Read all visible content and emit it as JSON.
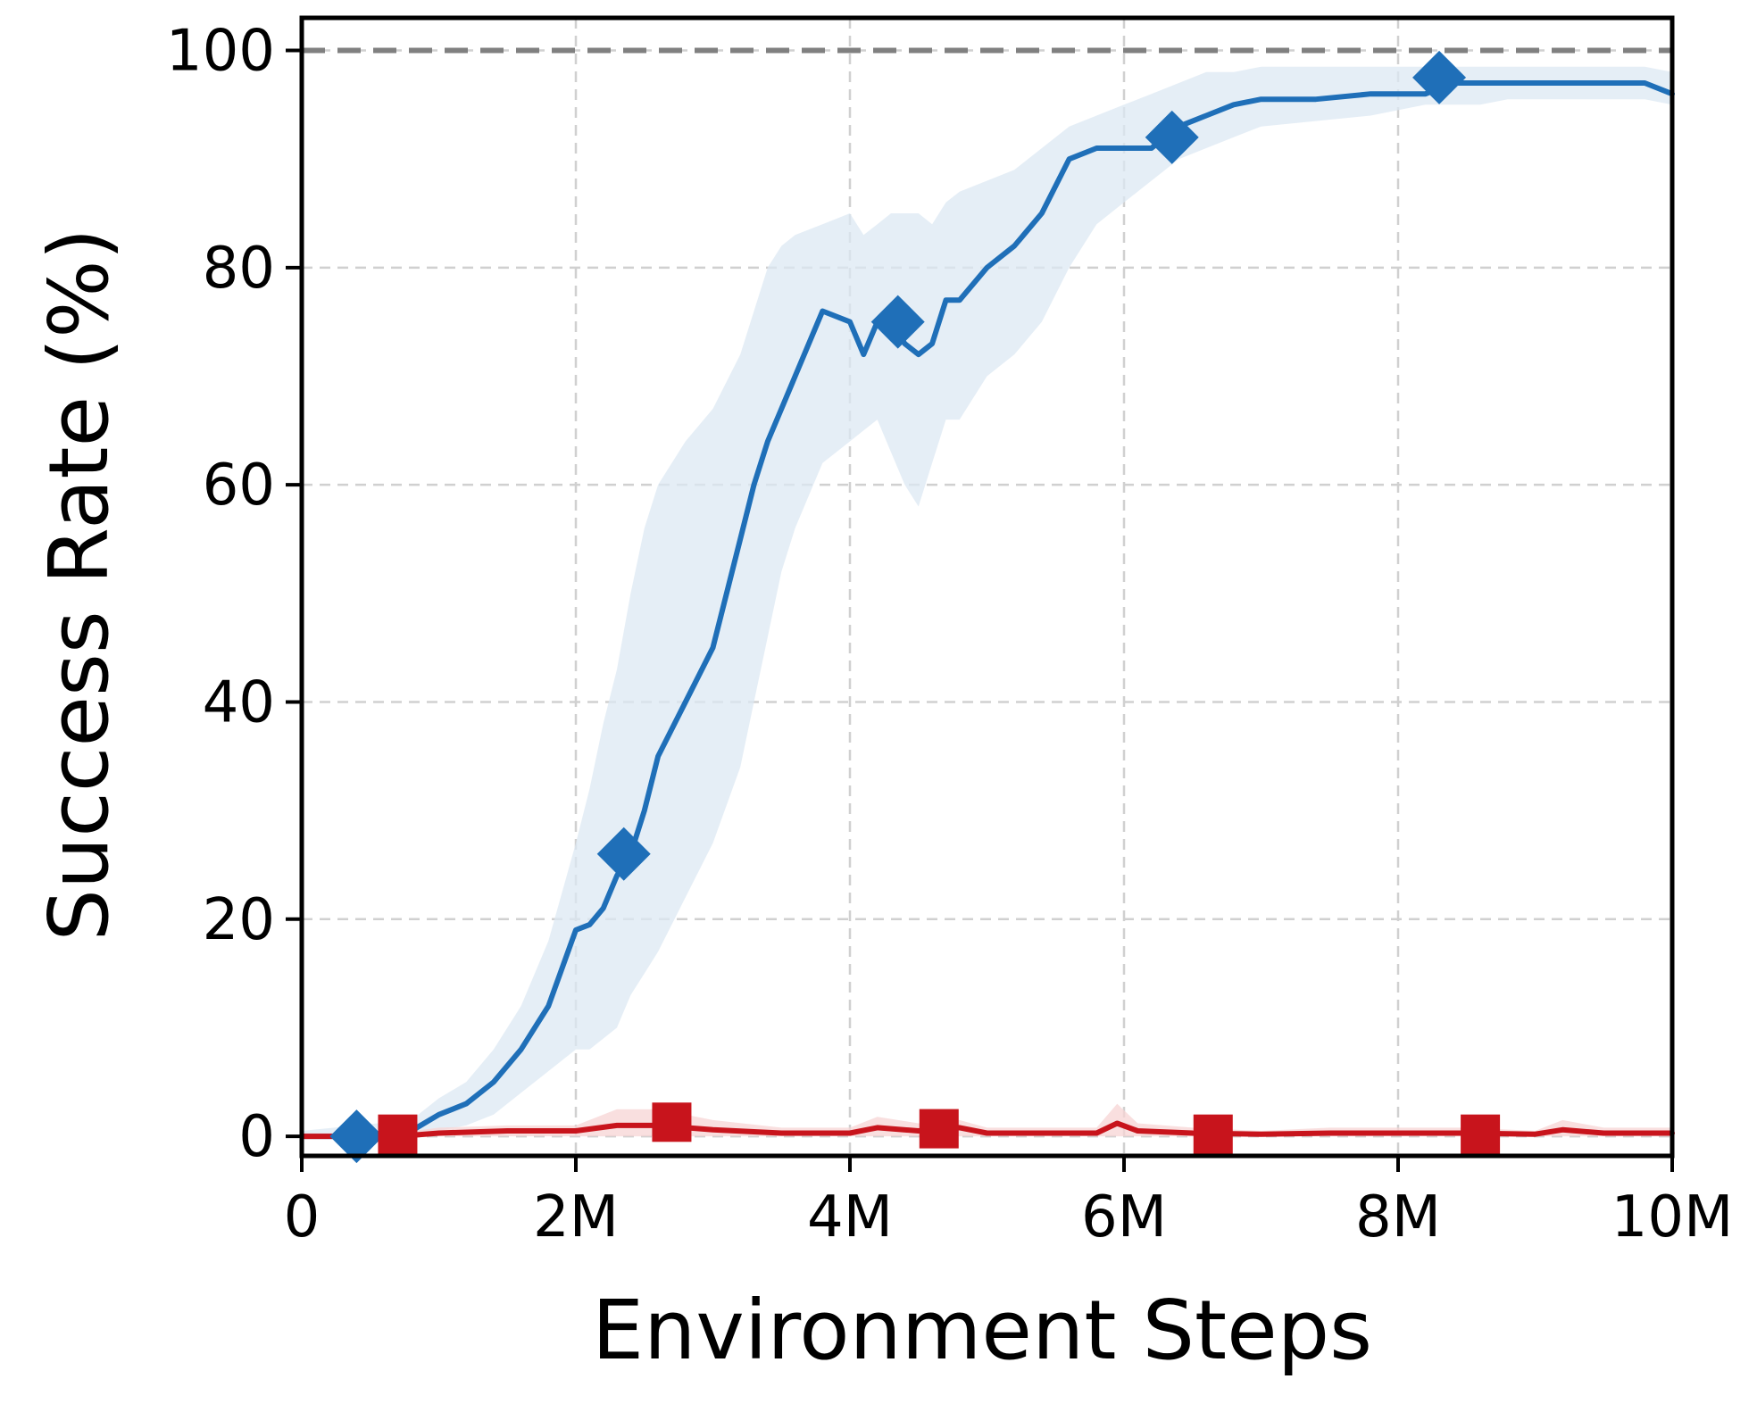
{
  "chart_data": {
    "type": "line",
    "xlabel": "Environment Steps",
    "ylabel": "Success Rate (%)",
    "xlim": [
      0,
      10
    ],
    "ylim": [
      -1.8,
      103
    ],
    "x_unit": "M steps",
    "x_ticks": [
      0,
      2,
      4,
      6,
      8,
      10
    ],
    "x_tick_labels": [
      "0",
      "2M",
      "4M",
      "6M",
      "8M",
      "10M"
    ],
    "y_ticks": [
      0,
      20,
      40,
      60,
      80,
      100
    ],
    "y_tick_labels": [
      "0",
      "20",
      "40",
      "60",
      "80",
      "100"
    ],
    "grid": true,
    "reference_line": {
      "y": 100,
      "color": "#808080",
      "style": "dashed"
    },
    "series": [
      {
        "color": "#1f6fb8",
        "band_color": "#dce8f3",
        "marker": "diamond",
        "x": [
          0,
          0.4,
          0.8,
          1.0,
          1.2,
          1.4,
          1.6,
          1.8,
          2.0,
          2.1,
          2.2,
          2.3,
          2.4,
          2.5,
          2.6,
          2.8,
          3.0,
          3.2,
          3.3,
          3.4,
          3.5,
          3.6,
          3.8,
          4.0,
          4.1,
          4.2,
          4.3,
          4.4,
          4.5,
          4.6,
          4.7,
          4.8,
          5.0,
          5.2,
          5.4,
          5.6,
          5.8,
          6.0,
          6.2,
          6.4,
          6.6,
          6.8,
          7.0,
          7.4,
          7.8,
          8.0,
          8.2,
          8.4,
          8.6,
          8.8,
          9.0,
          9.2,
          9.4,
          9.6,
          9.8,
          10.0
        ],
        "y": [
          0,
          0,
          0.5,
          2,
          3,
          5,
          8,
          12,
          19,
          19.5,
          21,
          24,
          26,
          30,
          35,
          40,
          45,
          55,
          60,
          64,
          67,
          70,
          76,
          75,
          72,
          75,
          75,
          73,
          72,
          73,
          77,
          77,
          80,
          82,
          85,
          90,
          91,
          91,
          91,
          93,
          94,
          95,
          95.5,
          95.5,
          96,
          96,
          96,
          97,
          97,
          97,
          97,
          97,
          97,
          97,
          97,
          96
        ],
        "lower": [
          0,
          0,
          0,
          0.5,
          1,
          2,
          4,
          6,
          8,
          8,
          9,
          10,
          13,
          15,
          17,
          22,
          27,
          34,
          40,
          46,
          52,
          56,
          62,
          64,
          65,
          66,
          63,
          60,
          58,
          62,
          66,
          66,
          70,
          72,
          75,
          80,
          84,
          86,
          88,
          90,
          91,
          92,
          93,
          93.5,
          94,
          94.5,
          95,
          95,
          95,
          95.5,
          95.5,
          95.5,
          95.5,
          95.5,
          95.5,
          95
        ],
        "upper": [
          0.5,
          1,
          1.5,
          3.5,
          5,
          8,
          12,
          18,
          27,
          32,
          38,
          43,
          50,
          56,
          60,
          64,
          67,
          72,
          76,
          80,
          82,
          83,
          84,
          85,
          83,
          84,
          85,
          85,
          85,
          84,
          86,
          87,
          88,
          89,
          91,
          93,
          94,
          95,
          96,
          97,
          98,
          98,
          98.5,
          98.5,
          98.5,
          98.5,
          98.5,
          98.5,
          98.5,
          98.5,
          98.5,
          98.5,
          98.5,
          98.5,
          98.5,
          98
        ],
        "marker_points": [
          [
            0.4,
            0
          ],
          [
            2.35,
            26
          ],
          [
            4.35,
            75
          ],
          [
            6.35,
            92
          ],
          [
            8.3,
            97.5
          ]
        ]
      },
      {
        "color": "#c8141c",
        "band_color": "#f7d4d4",
        "marker": "square",
        "x": [
          0,
          0.7,
          1.0,
          1.5,
          2.0,
          2.3,
          2.6,
          3.0,
          3.5,
          4.0,
          4.2,
          4.5,
          4.8,
          5.0,
          5.5,
          5.8,
          5.95,
          6.1,
          6.5,
          7.0,
          7.5,
          8.0,
          8.5,
          9.0,
          9.2,
          9.5,
          10.0
        ],
        "y": [
          0,
          0,
          0.3,
          0.5,
          0.5,
          1,
          1,
          0.6,
          0.3,
          0.3,
          0.8,
          0.5,
          0.8,
          0.3,
          0.3,
          0.3,
          1.2,
          0.5,
          0.3,
          0.2,
          0.3,
          0.3,
          0.3,
          0.2,
          0.6,
          0.3,
          0.3
        ],
        "lower": [
          0,
          0,
          0,
          0,
          0,
          0,
          0,
          0,
          0,
          0,
          0,
          0,
          0,
          0,
          0,
          0,
          0,
          0,
          0,
          0,
          0,
          0,
          0,
          0,
          0,
          0,
          0
        ],
        "upper": [
          0.3,
          0.3,
          0.8,
          1,
          1,
          2.5,
          2.5,
          1.5,
          0.8,
          0.8,
          1.8,
          1.2,
          1.5,
          0.8,
          0.8,
          0.8,
          3,
          1.2,
          0.8,
          0.5,
          0.8,
          0.8,
          0.8,
          0.5,
          1.5,
          0.8,
          0.8
        ],
        "marker_points": [
          [
            0.7,
            0.2
          ],
          [
            2.7,
            1.3
          ],
          [
            4.65,
            0.7
          ],
          [
            6.65,
            0.2
          ],
          [
            8.6,
            0.2
          ]
        ]
      }
    ]
  }
}
